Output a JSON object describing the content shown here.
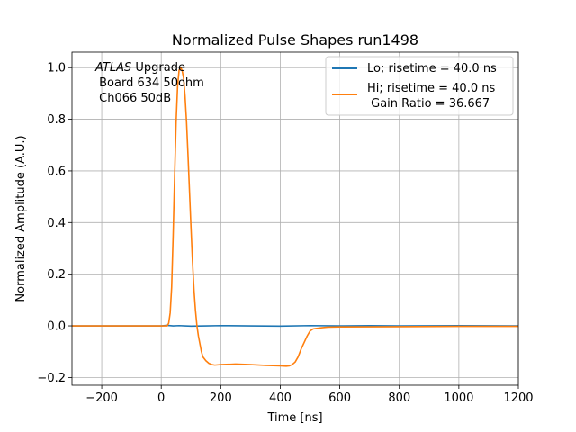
{
  "chart_data": {
    "type": "line",
    "title": "Normalized Pulse Shapes run1498",
    "xlabel": "Time [ns]",
    "ylabel": "Normalized Amplitude (A.U.)",
    "xlim": [
      -300,
      1200
    ],
    "ylim": [
      -0.23,
      1.06
    ],
    "xticks": [
      -200,
      0,
      200,
      400,
      600,
      800,
      1000,
      1200
    ],
    "xtick_labels": [
      "−200",
      "0",
      "200",
      "400",
      "600",
      "800",
      "1000",
      "1200"
    ],
    "yticks": [
      -0.2,
      0.0,
      0.2,
      0.4,
      0.6,
      0.8,
      1.0
    ],
    "ytick_labels": [
      "−0.2",
      "0.0",
      "0.2",
      "0.4",
      "0.6",
      "0.8",
      "1.0"
    ],
    "grid": true,
    "legend_position": "top-right",
    "annotation": {
      "atlas": "ATLAS",
      "line1_rest": " Upgrade",
      "line2": " Board 634 50ohm",
      "line3": " Ch066 50dB"
    },
    "series": [
      {
        "name": "Lo; risetime = 40.0 ns",
        "color": "#1f77b4",
        "x": [
          -300,
          0,
          20,
          40,
          60,
          80,
          100,
          150,
          200,
          300,
          400,
          500,
          600,
          700,
          800,
          1000,
          1200
        ],
        "y": [
          0.0,
          0.0,
          0.002,
          0.0,
          0.001,
          0.0,
          -0.001,
          0.0,
          0.001,
          0.0,
          -0.001,
          0.001,
          0.0,
          0.001,
          0.0,
          0.001,
          0.0
        ]
      },
      {
        "name": "Hi; risetime = 40.0 ns",
        "name_line2": " Gain Ratio = 36.667",
        "color": "#ff7f0e",
        "x": [
          -300,
          0,
          20,
          25,
          30,
          35,
          40,
          45,
          50,
          55,
          60,
          65,
          70,
          75,
          80,
          85,
          90,
          95,
          100,
          105,
          110,
          115,
          120,
          125,
          130,
          135,
          140,
          150,
          160,
          170,
          180,
          200,
          250,
          300,
          350,
          400,
          420,
          430,
          440,
          450,
          460,
          470,
          480,
          490,
          500,
          510,
          520,
          540,
          560,
          600,
          800,
          1000,
          1200
        ],
        "y": [
          0.0,
          0.0,
          0.0,
          0.01,
          0.05,
          0.15,
          0.35,
          0.58,
          0.79,
          0.93,
          0.99,
          1.0,
          0.99,
          0.96,
          0.89,
          0.79,
          0.66,
          0.52,
          0.38,
          0.25,
          0.14,
          0.06,
          0.0,
          -0.04,
          -0.07,
          -0.1,
          -0.12,
          -0.135,
          -0.145,
          -0.15,
          -0.152,
          -0.15,
          -0.148,
          -0.15,
          -0.153,
          -0.155,
          -0.156,
          -0.155,
          -0.15,
          -0.14,
          -0.12,
          -0.09,
          -0.065,
          -0.04,
          -0.02,
          -0.012,
          -0.01,
          -0.007,
          -0.005,
          -0.004,
          -0.003,
          -0.002,
          -0.002
        ]
      }
    ]
  }
}
